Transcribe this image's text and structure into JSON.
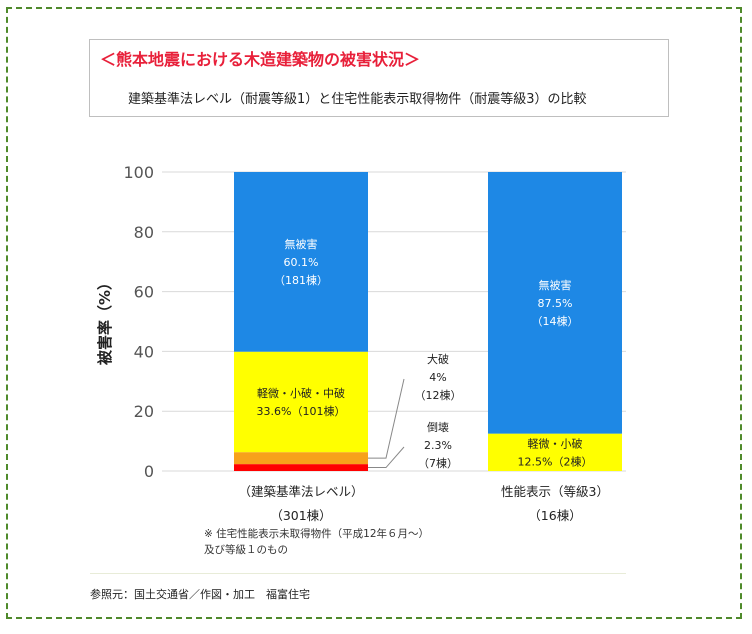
{
  "header": {
    "title": "＜熊本地震における木造建築物の被害状況＞",
    "subtitle": "建築基準法レベル（耐震等級1）と住宅性能表示取得物件（耐震等級3）の比較"
  },
  "chart_data": {
    "type": "bar",
    "stacked": true,
    "ylabel": "被害率（%）",
    "ylim": [
      0,
      100
    ],
    "yticks": [
      "0",
      "20",
      "40",
      "60",
      "80",
      "100"
    ],
    "grid": true,
    "categories": [
      {
        "label": "（建築基準法レベル）",
        "count": "（301棟）"
      },
      {
        "label": "性能表示（等級3）",
        "count": "（16棟）"
      }
    ],
    "series": [
      {
        "name": "倒壊",
        "color": "#ff0000",
        "values": [
          2.3,
          0
        ]
      },
      {
        "name": "大破",
        "color": "#f7a21b",
        "values": [
          4,
          0
        ]
      },
      {
        "name": "軽微・小破・中破",
        "color": "#ffff00",
        "values": [
          33.6,
          12.5
        ]
      },
      {
        "name": "無被害",
        "color": "#1e88e5",
        "values": [
          60.1,
          87.5
        ]
      }
    ],
    "inner_labels": [
      {
        "bar": 0,
        "series": 3,
        "lines": [
          "無被害",
          "60.1%",
          "（181棟）"
        ],
        "text_color": "#ffffff"
      },
      {
        "bar": 0,
        "series": 2,
        "lines": [
          "軽微・小破・中破",
          "33.6%（101棟）"
        ],
        "text_color": "#222222"
      },
      {
        "bar": 1,
        "series": 3,
        "lines": [
          "無被害",
          "87.5%",
          "（14棟）"
        ],
        "text_color": "#ffffff"
      },
      {
        "bar": 1,
        "series": 2,
        "lines": [
          "軽微・小破",
          "12.5%（2棟）"
        ],
        "text_color": "#222222"
      }
    ],
    "callouts": [
      {
        "bar": 0,
        "series": 1,
        "lines": [
          "大破",
          "4%",
          "（12棟）"
        ]
      },
      {
        "bar": 0,
        "series": 0,
        "lines": [
          "倒壊",
          "2.3%",
          "（7棟）"
        ]
      }
    ]
  },
  "note": "※ 住宅性能表示未取得物件（平成12年６月～）及び等級１のもの",
  "source": "参照元：国土交通省／作図・加工　福富住宅"
}
